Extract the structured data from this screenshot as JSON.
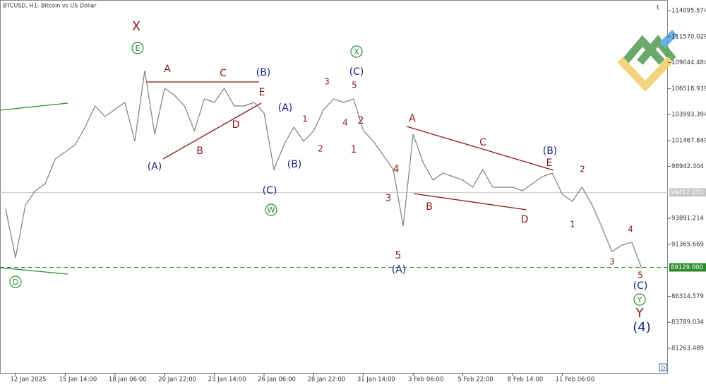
{
  "chart_data": {
    "type": "line",
    "title": "BTCUSD, H1:  Bitcoin vs US Dollar",
    "top_right": "t",
    "categories": [
      null,
      "12 Jan 2025",
      null,
      null,
      null,
      null,
      "15 Jan 14:00",
      null,
      null,
      null,
      null,
      "18 Jan 06:00",
      null,
      null,
      null,
      null,
      "20 Jan 22:00",
      null,
      null,
      null,
      null,
      "23 Jan 14:00",
      null,
      null,
      null,
      null,
      "26 Jan 06:00",
      null,
      null,
      null,
      null,
      "28 Jan 22:00",
      null,
      null,
      null,
      null,
      "31 Jan 14:00",
      null,
      null,
      null,
      null,
      "3 Feb 06:00",
      null,
      null,
      null,
      null,
      "5 Feb 22:00",
      null,
      null,
      null,
      null,
      "8 Feb 14:00",
      null,
      null,
      null,
      null,
      "11 Feb 06:00",
      null,
      null,
      null,
      null,
      null,
      null,
      null,
      null
    ],
    "series": [
      {
        "color": "#7f7f7f",
        "values": [
          94863,
          90055,
          95207,
          96580,
          97267,
          99671,
          100358,
          101045,
          102762,
          104823,
          103793,
          104480,
          105166,
          101389,
          108257,
          102075,
          106540,
          105853,
          104823,
          102419,
          105510,
          105166,
          106540,
          104823,
          104823,
          105166,
          104136,
          98641,
          101045,
          102762,
          101389,
          102419,
          104480,
          105510,
          105166,
          105510,
          102419,
          101389,
          100015,
          98641,
          93146,
          102075,
          99328,
          97611,
          98298,
          97954,
          97611,
          96924,
          98641,
          96924,
          96924,
          96924,
          96580,
          97267,
          97954,
          98298,
          96237,
          95550,
          96924,
          null,
          null,
          null,
          null,
          null,
          null
        ]
      },
      {
        "color": "#a6a6a6",
        "values": [
          null,
          null,
          null,
          null,
          null,
          null,
          null,
          null,
          null,
          null,
          null,
          null,
          null,
          null,
          null,
          null,
          null,
          null,
          null,
          null,
          null,
          null,
          null,
          null,
          null,
          null,
          null,
          null,
          null,
          null,
          null,
          null,
          null,
          null,
          null,
          null,
          null,
          null,
          null,
          null,
          null,
          null,
          null,
          null,
          null,
          null,
          null,
          null,
          null,
          null,
          null,
          null,
          null,
          null,
          null,
          null,
          null,
          null,
          96924,
          95207,
          93009,
          90673,
          91291,
          91566,
          89025
        ]
      }
    ],
    "ylim": [
      78859,
      114851
    ],
    "yticks": [
      81263.489,
      83789.034,
      86314.579,
      91365.669,
      93891.214,
      98942.304,
      101467.849,
      103993.394,
      106518.939,
      109044.484,
      111570.029,
      114095.574
    ],
    "grid": false,
    "price_lines": [
      {
        "value": 96417.07,
        "label": "96417.070",
        "color": "#c8c8c8",
        "dashed": false
      },
      {
        "value": 89129,
        "label": "89129.000",
        "color": "#2e8b2e",
        "dashed": true
      }
    ],
    "annotations": [
      {
        "text": "X",
        "color": "#8b1a1a",
        "circled": false
      },
      {
        "text": "E",
        "color": "#2e8b2e",
        "circled": true
      },
      {
        "text": "A",
        "color": "#8b1a1a",
        "circled": false
      },
      {
        "text": "C",
        "color": "#8b1a1a",
        "circled": false
      },
      {
        "text": "(B)",
        "color": "#1a237e",
        "circled": false
      },
      {
        "text": "E",
        "color": "#8b1a1a",
        "circled": false
      },
      {
        "text": "D",
        "color": "#8b1a1a",
        "circled": false
      },
      {
        "text": "B",
        "color": "#8b1a1a",
        "circled": false
      },
      {
        "text": "(A)",
        "color": "#1a237e",
        "circled": false
      },
      {
        "text": "(C)",
        "color": "#1a237e",
        "circled": false
      },
      {
        "text": "W",
        "color": "#2e8b2e",
        "circled": true
      },
      {
        "text": "(A)",
        "color": "#1a237e",
        "circled": false
      },
      {
        "text": "(B)",
        "color": "#1a237e",
        "circled": false
      },
      {
        "text": "1",
        "color": "#8b1a1a",
        "circled": false
      },
      {
        "text": "2",
        "color": "#8b1a1a",
        "circled": false
      },
      {
        "text": "3",
        "color": "#8b1a1a",
        "circled": false
      },
      {
        "text": "4",
        "color": "#8b1a1a",
        "circled": false
      },
      {
        "text": "5",
        "color": "#8b1a1a",
        "circled": false
      },
      {
        "text": "X",
        "color": "#2e8b2e",
        "circled": true
      },
      {
        "text": "(C)",
        "color": "#1a237e",
        "circled": false
      },
      {
        "text": "2",
        "color": "#8b1a1a",
        "circled": false
      },
      {
        "text": "1",
        "color": "#8b1a1a",
        "circled": false
      },
      {
        "text": "4",
        "color": "#8b1a1a",
        "circled": false
      },
      {
        "text": "3",
        "color": "#8b1a1a",
        "circled": false
      },
      {
        "text": "5",
        "color": "#8b1a1a",
        "circled": false
      },
      {
        "text": "(A)",
        "color": "#1a237e",
        "circled": false
      },
      {
        "text": "A",
        "color": "#8b1a1a",
        "circled": false
      },
      {
        "text": "C",
        "color": "#8b1a1a",
        "circled": false
      },
      {
        "text": "B",
        "color": "#8b1a1a",
        "circled": false
      },
      {
        "text": "D",
        "color": "#8b1a1a",
        "circled": false
      },
      {
        "text": "(B)",
        "color": "#1a237e",
        "circled": false
      },
      {
        "text": "E",
        "color": "#8b1a1a",
        "circled": false
      },
      {
        "text": "2",
        "color": "#8b1a1a",
        "circled": false
      },
      {
        "text": "1",
        "color": "#8b1a1a",
        "circled": false
      },
      {
        "text": "4",
        "color": "#8b1a1a",
        "circled": false
      },
      {
        "text": "3",
        "color": "#8b1a1a",
        "circled": false
      },
      {
        "text": "5",
        "color": "#8b1a1a",
        "circled": false
      },
      {
        "text": "(C)",
        "color": "#1a237e",
        "circled": false
      },
      {
        "text": "Y",
        "color": "#2e8b2e",
        "circled": true
      },
      {
        "text": "Y",
        "color": "#8b1a1a",
        "circled": false
      },
      {
        "text": "(4)",
        "color": "#1a237e",
        "circled": false
      },
      {
        "text": "D",
        "color": "#2e8b2e",
        "circled": true
      }
    ]
  }
}
